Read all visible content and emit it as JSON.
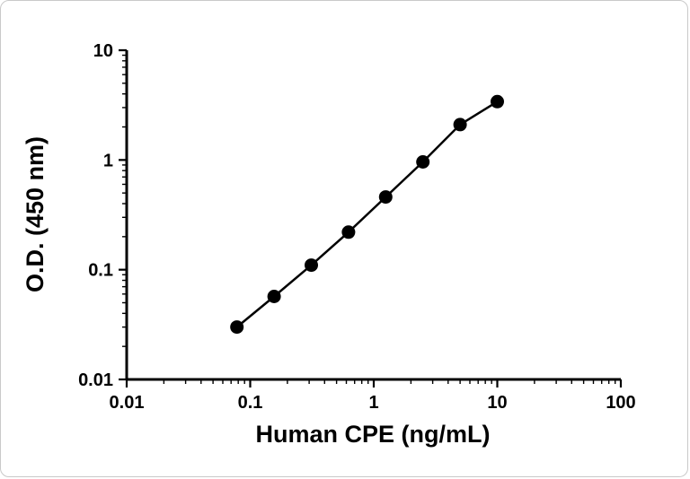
{
  "chart_data": {
    "type": "line",
    "title": "",
    "xlabel": "Human CPE (ng/mL)",
    "ylabel": "O.D. (450 nm)",
    "x_scale": "log",
    "y_scale": "log",
    "xlim": [
      0.01,
      100
    ],
    "ylim": [
      0.01,
      10
    ],
    "x_ticks": [
      0.01,
      0.1,
      1,
      10,
      100
    ],
    "x_tick_labels": [
      "0.01",
      "0.1",
      "1",
      "10",
      "100"
    ],
    "y_ticks": [
      0.01,
      0.1,
      1,
      10
    ],
    "y_tick_labels": [
      "0.01",
      "0.1",
      "1",
      "10"
    ],
    "grid": false,
    "legend": null,
    "series": [
      {
        "x": [
          0.078,
          0.156,
          0.3125,
          0.625,
          1.25,
          2.5,
          5,
          10
        ],
        "y": [
          0.03,
          0.057,
          0.11,
          0.22,
          0.46,
          0.96,
          2.1,
          3.4
        ],
        "marker": "circle",
        "color": "#000000"
      }
    ]
  },
  "colors": {
    "axis": "#000000",
    "background": "#ffffff",
    "frame_border": "#c9c9c9"
  }
}
